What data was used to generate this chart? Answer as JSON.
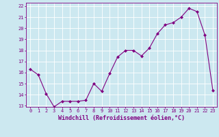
{
  "x": [
    0,
    1,
    2,
    3,
    4,
    5,
    6,
    7,
    8,
    9,
    10,
    11,
    12,
    13,
    14,
    15,
    16,
    17,
    18,
    19,
    20,
    21,
    22,
    23
  ],
  "y": [
    16.3,
    15.8,
    14.1,
    12.9,
    13.4,
    13.4,
    13.4,
    13.5,
    15.0,
    14.3,
    15.9,
    17.4,
    18.0,
    18.0,
    17.5,
    18.2,
    19.5,
    20.3,
    20.5,
    21.0,
    21.8,
    21.5,
    19.4,
    14.4
  ],
  "line_color": "#800080",
  "marker": "D",
  "markersize": 2,
  "bg_color": "#cce8f0",
  "grid_color": "#ffffff",
  "xlabel": "Windchill (Refroidissement éolien,°C)",
  "ylim_min": 13,
  "ylim_max": 22,
  "xlim_min": -0.5,
  "xlim_max": 23.5,
  "yticks": [
    13,
    14,
    15,
    16,
    17,
    18,
    19,
    20,
    21,
    22
  ],
  "xticks": [
    0,
    1,
    2,
    3,
    4,
    5,
    6,
    7,
    8,
    9,
    10,
    11,
    12,
    13,
    14,
    15,
    16,
    17,
    18,
    19,
    20,
    21,
    22,
    23
  ],
  "tick_fontsize": 5.0,
  "xlabel_fontsize": 6.0
}
